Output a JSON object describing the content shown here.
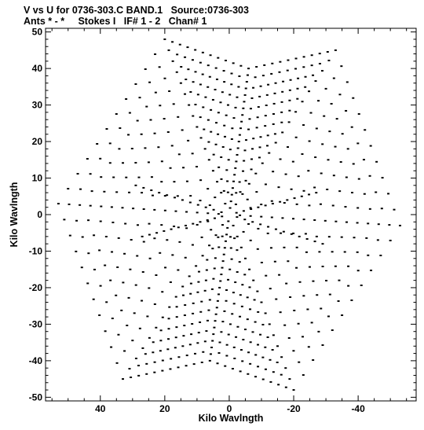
{
  "title_line1": "V vs U for 0736-303.C BAND.1   Source:0736-303",
  "title_line2": "Ants * - *     Stokes I   IF# 1 - 2   Chan# 1",
  "chart_data": {
    "type": "scatter",
    "xlabel": "Kilo Wavlngth",
    "ylabel": "Kilo Wavlngth",
    "xlim": [
      57,
      -58
    ],
    "ylim": [
      -51,
      51
    ],
    "x_ticks": [
      40,
      20,
      0,
      -20,
      -40
    ],
    "x_tick_labels": [
      "40",
      "20",
      "0",
      "-20",
      "-40"
    ],
    "y_ticks": [
      50,
      40,
      30,
      20,
      10,
      0,
      -10,
      -20,
      -30,
      -40,
      -50
    ],
    "y_tick_labels": [
      "50",
      "40",
      "30",
      "20",
      "10",
      "0",
      "-10",
      "-20",
      "-30",
      "-40",
      "-50"
    ],
    "grid": false,
    "marker_color": "#000000",
    "arms": [
      {
        "from": [
          0,
          0
        ],
        "to": [
          20,
          48
        ],
        "n": 16
      },
      {
        "from": [
          0,
          0
        ],
        "to": [
          -33,
          45
        ],
        "n": 16
      },
      {
        "from": [
          0,
          0
        ],
        "to": [
          -53,
          -3
        ],
        "n": 16
      },
      {
        "from": [
          0,
          0
        ],
        "to": [
          -20,
          -48
        ],
        "n": 16
      },
      {
        "from": [
          0,
          0
        ],
        "to": [
          33,
          -45
        ],
        "n": 16
      },
      {
        "from": [
          0,
          0
        ],
        "to": [
          53,
          3
        ],
        "n": 16
      },
      {
        "from": [
          0,
          0
        ],
        "to": [
          -6,
          40
        ],
        "n": 22
      },
      {
        "from": [
          0,
          0
        ],
        "to": [
          6,
          -40
        ],
        "n": 22
      },
      {
        "from": [
          0,
          0
        ],
        "to": [
          29,
          8
        ],
        "n": 12
      },
      {
        "from": [
          0,
          0
        ],
        "to": [
          -29,
          -8
        ],
        "n": 12
      },
      {
        "from": [
          0,
          0
        ],
        "to": [
          -27,
          6
        ],
        "n": 12
      },
      {
        "from": [
          0,
          0
        ],
        "to": [
          27,
          -6
        ],
        "n": 12
      }
    ]
  }
}
